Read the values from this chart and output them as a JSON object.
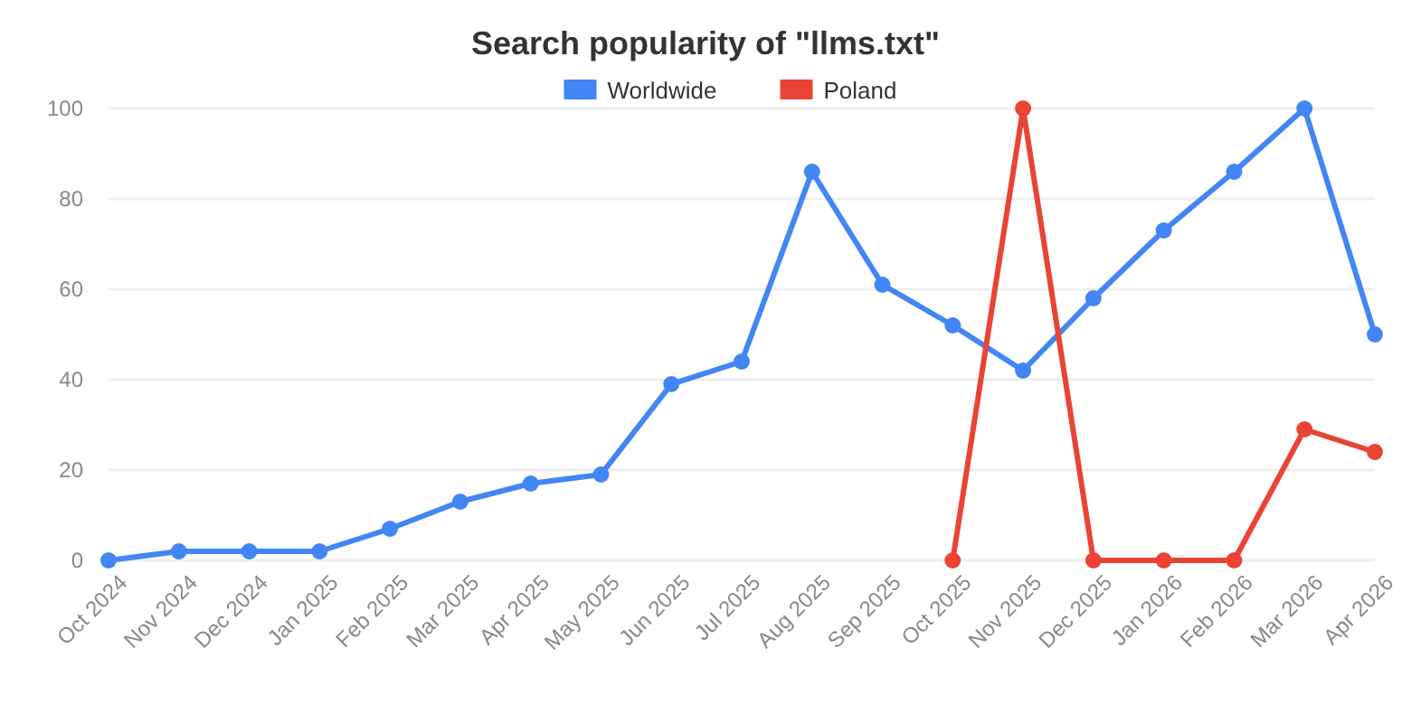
{
  "chart_data": {
    "type": "line",
    "title": "Search popularity of \"llms.txt\"",
    "categories": [
      "Oct 2024",
      "Nov 2024",
      "Dec 2024",
      "Jan 2025",
      "Feb 2025",
      "Mar 2025",
      "Apr 2025",
      "May 2025",
      "Jun 2025",
      "Jul 2025",
      "Aug 2025",
      "Sep 2025",
      "Oct 2025",
      "Nov 2025",
      "Dec 2025",
      "Jan 2026",
      "Feb 2026",
      "Mar 2026",
      "Apr 2026"
    ],
    "series": [
      {
        "name": "Worldwide",
        "color": "#4285f4",
        "values": [
          0,
          2,
          2,
          2,
          7,
          13,
          17,
          19,
          39,
          44,
          86,
          61,
          52,
          42,
          58,
          73,
          86,
          100,
          50
        ]
      },
      {
        "name": "Poland",
        "color": "#ea4335",
        "values": [
          null,
          null,
          null,
          null,
          null,
          null,
          null,
          null,
          null,
          null,
          null,
          null,
          0,
          100,
          0,
          0,
          0,
          29,
          24
        ]
      }
    ],
    "ylim": [
      0,
      100
    ],
    "yticks": [
      0,
      20,
      40,
      60,
      80,
      100
    ],
    "grid": "y",
    "legend": "top",
    "marker": "circle",
    "line_style": "solid"
  }
}
